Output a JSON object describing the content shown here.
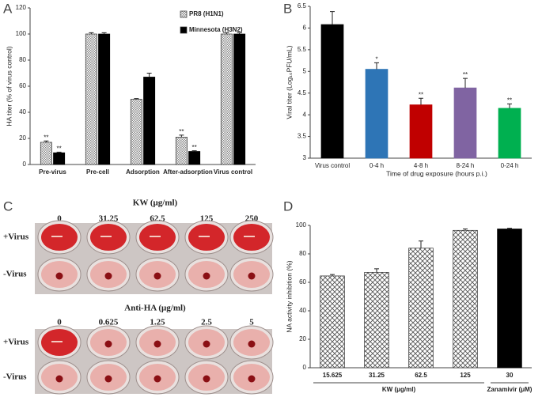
{
  "chart_data": [
    {
      "panel": "A",
      "type": "bar",
      "ylabel": "HA titer (% of virus control)",
      "categories": [
        "Pre-virus",
        "Pre-cell",
        "Adsorption",
        "After-adsorption",
        "Virus control"
      ],
      "series": [
        {
          "name": "PR8 (H1N1)",
          "color": "#9a9a9a",
          "hatch": true,
          "values": [
            17,
            100,
            50,
            21,
            100
          ],
          "errors": [
            1,
            1,
            0.5,
            1.5,
            1
          ],
          "significance": [
            "**",
            null,
            null,
            "**",
            null
          ]
        },
        {
          "name": "Minnesota (H3N2)",
          "color": "#000000",
          "hatch": false,
          "values": [
            9,
            100,
            67,
            10,
            100
          ],
          "errors": [
            0.5,
            1,
            3,
            0.5,
            1
          ],
          "significance": [
            "**",
            null,
            null,
            "**",
            null
          ]
        }
      ],
      "ylim": [
        0,
        120
      ],
      "yticks": [
        0,
        20,
        40,
        60,
        80,
        100,
        120
      ],
      "legend": "upper right"
    },
    {
      "panel": "B",
      "type": "bar",
      "ylabel": "Viral titer (Log₁₀PFU/mL)",
      "xlabel": "Time of drug exposure (hours p.i.)",
      "categories": [
        "Virus control",
        "0-4 h",
        "4-8 h",
        "8-24 h",
        "0-24 h"
      ],
      "values": [
        6.08,
        5.05,
        4.23,
        4.62,
        4.15
      ],
      "errors": [
        0.3,
        0.15,
        0.15,
        0.22,
        0.1
      ],
      "significance": [
        null,
        "*",
        "**",
        "**",
        "**"
      ],
      "colors": [
        "#000000",
        "#2e75b6",
        "#c00000",
        "#8064a2",
        "#00b050"
      ],
      "hatch": [
        false,
        false,
        false,
        false,
        false
      ],
      "ylim": [
        3,
        6.5
      ],
      "yticks": [
        3,
        3.5,
        4,
        4.5,
        5,
        5.5,
        6,
        6.5
      ]
    },
    {
      "panel": "D",
      "type": "bar",
      "ylabel": "NA activity inhibition (%)",
      "categories": [
        "15.625",
        "31.25",
        "62.5",
        "125",
        "30"
      ],
      "groups": [
        "KW (μg/ml)",
        "KW (μg/ml)",
        "KW (μg/ml)",
        "KW (μg/ml)",
        "Zanamivir (μM)"
      ],
      "values": [
        64.5,
        67,
        84,
        96.5,
        97.5
      ],
      "errors": [
        1,
        2.5,
        5,
        1,
        0.5
      ],
      "colors": [
        "#555555",
        "#555555",
        "#555555",
        "#555555",
        "#000000"
      ],
      "hatch": [
        true,
        true,
        true,
        true,
        false
      ],
      "ylim": [
        0,
        100
      ],
      "yticks": [
        0,
        20,
        40,
        60,
        80,
        100
      ]
    }
  ],
  "panel_c": {
    "label": "C",
    "top": {
      "title": "KW (μg/ml)",
      "concentrations": [
        "0",
        "31.25",
        "62.5",
        "125",
        "250"
      ],
      "rows": [
        "+Virus",
        "-Virus"
      ]
    },
    "bottom": {
      "title": "Anti-HA (μg/ml)",
      "concentrations": [
        "0",
        "0.625",
        "1.25",
        "2.5",
        "5"
      ],
      "rows": [
        "+Virus",
        "-Virus"
      ]
    }
  }
}
